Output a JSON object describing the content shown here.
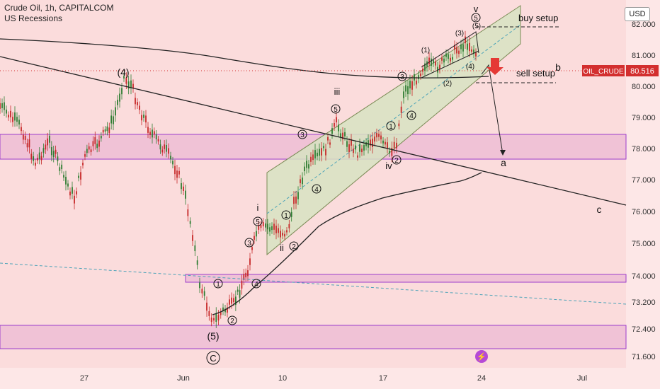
{
  "header": {
    "title": "Crude Oil, 1h, CAPITALCOM",
    "subtitle": "US Recessions"
  },
  "currency": "USD",
  "price_tag": {
    "symbol": "OIL_CRUDE",
    "value": "80.516",
    "color": "#d32f2f"
  },
  "colors": {
    "background": "#fbdcdc",
    "channel": "#d7e3c2",
    "zone": "#f0c2d6",
    "zone_border": "#9b3dcc",
    "up": "#2e7d32",
    "down": "#c62828",
    "arrow": "#e53935"
  },
  "chart_data": {
    "type": "candlestick",
    "title": "Crude Oil, 1h, CAPITALCOM",
    "y_ticks": [
      "82.000",
      "81.000",
      "80.000",
      "79.000",
      "78.000",
      "77.000",
      "76.000",
      "75.000",
      "74.000",
      "73.200",
      "72.400",
      "71.600"
    ],
    "x_ticks": [
      "27",
      "Jun",
      "10",
      "17",
      "24",
      "Jul"
    ],
    "ylim": [
      71.3,
      82.6
    ],
    "wave_labels": [
      "(4)",
      "(5)",
      "C",
      "i",
      "ii",
      "iii",
      "iv",
      "v",
      "1",
      "2",
      "3",
      "4",
      "5",
      "(1)",
      "(2)",
      "(3)",
      "(4)",
      "(5)",
      "a",
      "b",
      "c"
    ],
    "annotations": [
      "buy setup",
      "sell setup"
    ],
    "zones": [
      {
        "name": "upper-zone",
        "ymin": 77.75,
        "ymax": 78.45
      },
      {
        "name": "middle-zone",
        "ymin": 73.8,
        "ymax": 74.05
      },
      {
        "name": "lower-zone",
        "ymin": 71.75,
        "ymax": 72.5
      }
    ]
  }
}
